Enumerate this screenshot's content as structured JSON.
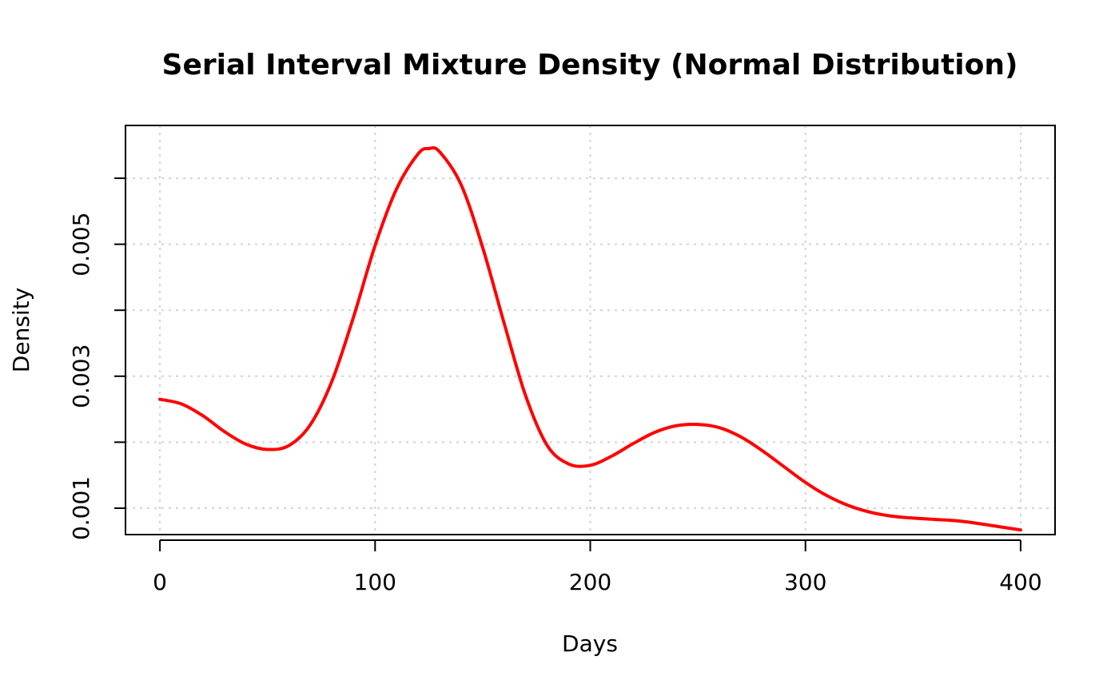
{
  "chart_data": {
    "type": "line",
    "title": "Serial Interval Mixture Density (Normal Distribution)",
    "xlabel": "Days",
    "ylabel": "Density",
    "xlim": [
      -16,
      416
    ],
    "ylim": [
      0.0006,
      0.0068
    ],
    "x_ticks": [
      0,
      100,
      200,
      300,
      400
    ],
    "x_tick_labels": [
      "0",
      "100",
      "200",
      "300",
      "400"
    ],
    "y_ticks": [
      0.001,
      0.002,
      0.003,
      0.004,
      0.005,
      0.006
    ],
    "y_tick_labels": [
      "0.001",
      "",
      "0.003",
      "",
      "0.005",
      ""
    ],
    "grid": true,
    "series": [
      {
        "color": "#ff0000",
        "x": [
          0,
          10,
          20,
          30,
          40,
          50,
          60,
          70,
          80,
          90,
          100,
          110,
          120,
          125,
          130,
          140,
          150,
          160,
          170,
          180,
          190,
          200,
          210,
          220,
          230,
          240,
          250,
          260,
          270,
          280,
          290,
          300,
          310,
          320,
          330,
          340,
          350,
          360,
          370,
          380,
          390,
          400
        ],
        "y": [
          0.00265,
          0.00258,
          0.0024,
          0.00216,
          0.00197,
          0.00189,
          0.00195,
          0.00227,
          0.00293,
          0.0039,
          0.00498,
          0.00584,
          0.00637,
          0.00645,
          0.0064,
          0.0059,
          0.00495,
          0.0038,
          0.0027,
          0.00195,
          0.00167,
          0.00165,
          0.00179,
          0.00198,
          0.00215,
          0.00225,
          0.00227,
          0.00222,
          0.00208,
          0.00187,
          0.00163,
          0.00139,
          0.00119,
          0.00104,
          0.00094,
          0.00088,
          0.00085,
          0.00083,
          0.00081,
          0.00077,
          0.00072,
          0.00067
        ]
      }
    ]
  }
}
